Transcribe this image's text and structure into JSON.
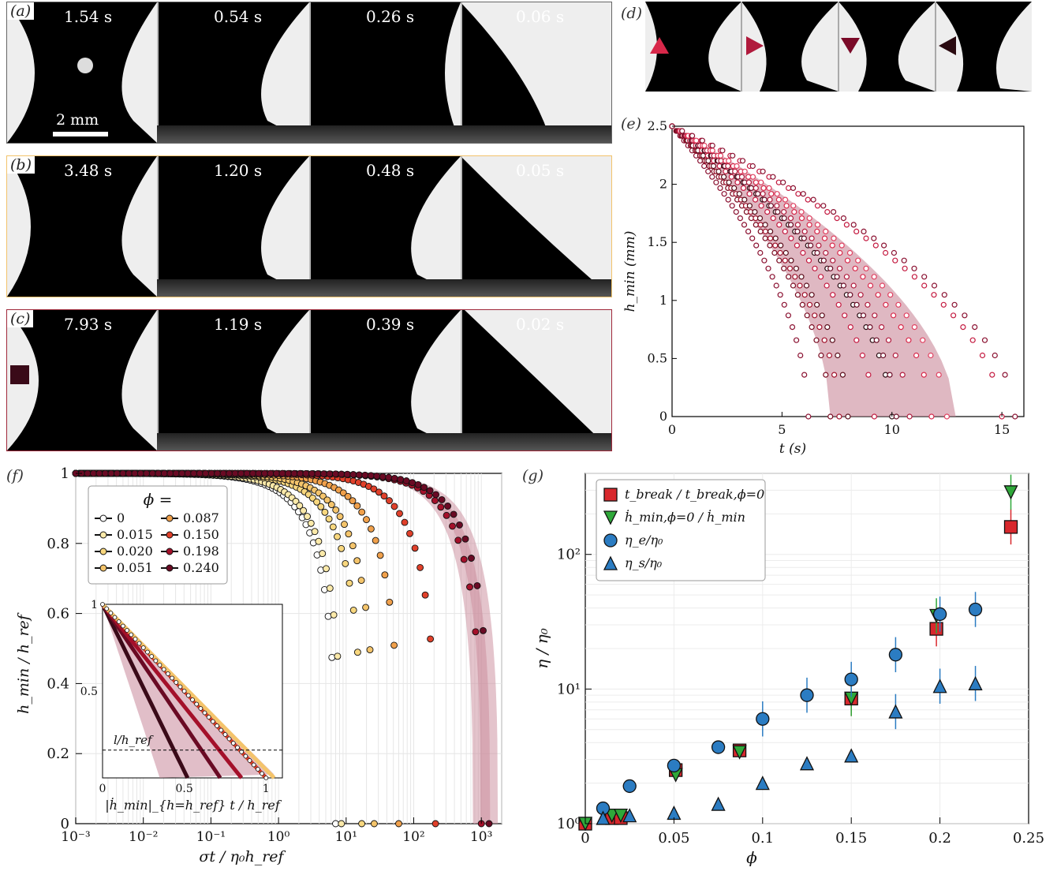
{
  "panels": {
    "a": {
      "label": "(a)",
      "times": [
        "1.54 s",
        "0.54 s",
        "0.26 s",
        "0.06 s"
      ],
      "scale_bar": "2 mm",
      "border": "#666666"
    },
    "b": {
      "label": "(b)",
      "times": [
        "3.48 s",
        "1.20 s",
        "0.48 s",
        "0.05 s"
      ],
      "border": "#f2c36b"
    },
    "c": {
      "label": "(c)",
      "times": [
        "7.93 s",
        "1.19 s",
        "0.39 s",
        "0.02 s"
      ],
      "border": "#a0283a"
    },
    "d": {
      "label": "(d)"
    },
    "e": {
      "label": "(e)"
    },
    "f": {
      "label": "(f)"
    },
    "g": {
      "label": "(g)"
    }
  },
  "colors": {
    "phi0": "#000000",
    "phi015": "#fbe9a9",
    "phi020": "#f8d77e",
    "phi051": "#f4c46b",
    "phi087": "#f0a04b",
    "phi150": "#e0402a",
    "phi198": "#a4102a",
    "phi240": "#6a0a24",
    "band": "#c9899a",
    "red_marker": "#d8282d",
    "green_marker": "#2fa83a",
    "blue_marker": "#2b7cc2"
  },
  "chart_data": [
    {
      "panel": "e",
      "type": "scatter",
      "xlabel": "t  (s)",
      "ylabel": "h_min  (mm)",
      "xlim": [
        0,
        16
      ],
      "ylim": [
        0,
        2.5
      ],
      "xticks": [
        "0",
        "5",
        "10",
        "15"
      ],
      "yticks": [
        "0",
        "0.5",
        "1",
        "1.5",
        "2",
        "2.5"
      ],
      "series": [
        {
          "t_break": 6.2
        },
        {
          "t_break": 7.2
        },
        {
          "t_break": 7.6
        },
        {
          "t_break": 8.0
        },
        {
          "t_break": 9.2
        },
        {
          "t_break": 10.0
        },
        {
          "t_break": 10.2
        },
        {
          "t_break": 10.8
        },
        {
          "t_break": 11.8
        },
        {
          "t_break": 12.5
        },
        {
          "t_break": 15.0
        },
        {
          "t_break": 15.6
        }
      ],
      "band": {
        "t_lo": 7.2,
        "t_hi": 12.9
      }
    },
    {
      "panel": "f",
      "type": "scatter",
      "xlabel": "σt / η₀h_ref",
      "ylabel": "h_min / h_ref",
      "xscale": "log",
      "xlim": [
        0.001,
        2000
      ],
      "ylim": [
        0,
        1
      ],
      "xticks": [
        "10⁻³",
        "10⁻²",
        "10⁻¹",
        "10⁰",
        "10¹",
        "10²",
        "10³"
      ],
      "yticks": [
        "0",
        "0.2",
        "0.4",
        "0.6",
        "0.8",
        "1"
      ],
      "legend_title": "ϕ =",
      "series": [
        {
          "name": "0",
          "t_break": 7.0
        },
        {
          "name": "0.015",
          "t_break": 8.5
        },
        {
          "name": "0.020",
          "t_break": 17
        },
        {
          "name": "0.051",
          "t_break": 26
        },
        {
          "name": "0.087",
          "t_break": 60
        },
        {
          "name": "0.150",
          "t_break": 210
        },
        {
          "name": "0.198",
          "t_break": 1000
        },
        {
          "name": "0.240",
          "t_break": 1300
        }
      ],
      "inset": {
        "xlabel": "|ḣ_min|_{h=h_ref} t / h_ref",
        "xlim": [
          0,
          1.1
        ],
        "ylim": [
          0,
          1
        ],
        "xticks": [
          "0",
          "0.5",
          "1"
        ],
        "yticks": [
          "0.5",
          "1"
        ],
        "annotation": "l/h_ref",
        "dashed_y": 0.16
      }
    },
    {
      "panel": "g",
      "type": "scatter",
      "xlabel": "ϕ",
      "ylabel": "η / η₀",
      "yscale": "log",
      "xlim": [
        0,
        0.25
      ],
      "ylim": [
        1,
        400
      ],
      "xticks": [
        "0",
        "0.05",
        "0.1",
        "0.15",
        "0.2",
        "0.25"
      ],
      "yticks": [
        "10⁰",
        "10¹",
        "10²"
      ],
      "legend": [
        "t_break / t_break,ϕ=0",
        "ḣ_min,ϕ=0 / ḣ_min",
        "η_e/η₀",
        "η_s/η₀"
      ],
      "series": [
        {
          "name": "t_break / t_break,ϕ=0",
          "marker": "square",
          "x": [
            0,
            0.015,
            0.02,
            0.051,
            0.087,
            0.15,
            0.198,
            0.24
          ],
          "y": [
            1,
            1.1,
            1.1,
            2.5,
            3.5,
            8.5,
            28,
            160
          ]
        },
        {
          "name": "ḣ_min,ϕ=0 / ḣ_min",
          "marker": "triangle-down",
          "x": [
            0,
            0.015,
            0.02,
            0.051,
            0.087,
            0.15,
            0.198,
            0.24
          ],
          "y": [
            1,
            1.15,
            1.15,
            2.3,
            3.4,
            8.5,
            35,
            290
          ]
        },
        {
          "name": "η_e/η₀",
          "marker": "circle",
          "x": [
            0.01,
            0.025,
            0.05,
            0.075,
            0.1,
            0.125,
            0.15,
            0.175,
            0.2,
            0.22
          ],
          "y": [
            1.3,
            1.9,
            2.7,
            3.7,
            6,
            9,
            11.8,
            18,
            36,
            39
          ]
        },
        {
          "name": "η_s/η₀",
          "marker": "triangle-up",
          "x": [
            0.01,
            0.025,
            0.05,
            0.075,
            0.1,
            0.125,
            0.15,
            0.175,
            0.2,
            0.22
          ],
          "y": [
            1.1,
            1.15,
            1.2,
            1.4,
            2.0,
            2.8,
            3.2,
            6.8,
            10.5,
            11
          ]
        }
      ]
    }
  ]
}
